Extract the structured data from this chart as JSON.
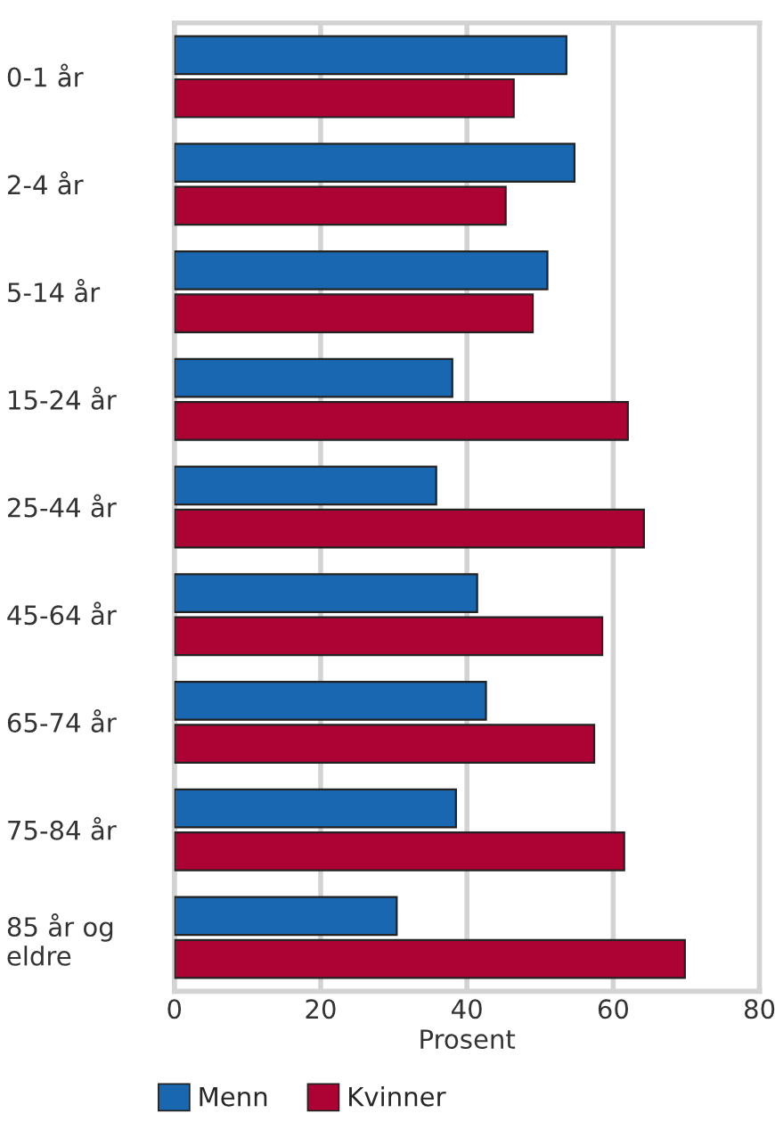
{
  "chart_data": {
    "type": "bar",
    "orientation": "horizontal",
    "xlabel": "Prosent",
    "categories": [
      "0-1 år",
      "2-4 år",
      "5-14 år",
      "15-24 år",
      "25-44 år",
      "45-64 år",
      "65-74 år",
      "75-84 år",
      "85 år og\neldre"
    ],
    "series": [
      {
        "name": "Menn",
        "color": "#1967b0",
        "values": [
          53.6,
          54.7,
          51.0,
          38.0,
          35.8,
          41.4,
          42.6,
          38.5,
          30.4
        ]
      },
      {
        "name": "Kvinner",
        "color": "#ad0234",
        "values": [
          46.4,
          45.3,
          49.0,
          62.0,
          64.2,
          58.5,
          57.4,
          61.5,
          69.8
        ]
      }
    ],
    "xlim": [
      0,
      80
    ],
    "xticks": [
      0,
      20,
      40,
      60,
      80
    ],
    "grid": "x",
    "legend": "bottom"
  }
}
